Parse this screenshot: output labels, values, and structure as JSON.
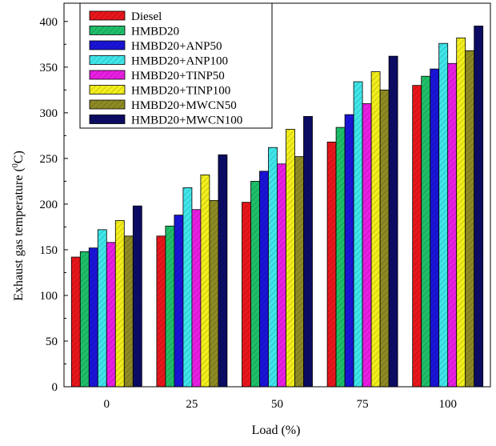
{
  "chart_data": {
    "type": "bar",
    "xlabel": "Load (%)",
    "ylabel_main": "Exhaust gas temperature (",
    "ylabel_sup": "0",
    "ylabel_tail": "C)",
    "ylim": [
      0,
      420
    ],
    "yticks": [
      0,
      50,
      100,
      150,
      200,
      250,
      300,
      350,
      400
    ],
    "categories": [
      "0",
      "25",
      "50",
      "75",
      "100"
    ],
    "legend_position": "top-left",
    "grid": false,
    "bar_pattern": "diagonal-hatch",
    "series": [
      {
        "name": "Diesel",
        "color": "#e8161b",
        "values": [
          142,
          165,
          202,
          268,
          330
        ]
      },
      {
        "name": "HMBD20",
        "color": "#1fbf6a",
        "values": [
          148,
          176,
          225,
          284,
          340
        ]
      },
      {
        "name": "HMBD20+ANP50",
        "color": "#1a14d8",
        "values": [
          152,
          188,
          236,
          298,
          348
        ]
      },
      {
        "name": "HMBD20+ANP100",
        "color": "#3fe6ea",
        "values": [
          172,
          218,
          262,
          334,
          376
        ]
      },
      {
        "name": "HMBD20+TINP50",
        "color": "#e91ee3",
        "values": [
          158,
          194,
          244,
          310,
          354
        ]
      },
      {
        "name": "HMBD20+TINP100",
        "color": "#f2ee1c",
        "values": [
          182,
          232,
          282,
          345,
          382
        ]
      },
      {
        "name": "HMBD20+MWCN50",
        "color": "#8e8a24",
        "values": [
          165,
          204,
          252,
          325,
          368
        ]
      },
      {
        "name": "HMBD20+MWCN100",
        "color": "#0c0c66",
        "values": [
          198,
          254,
          296,
          362,
          395
        ]
      }
    ]
  }
}
